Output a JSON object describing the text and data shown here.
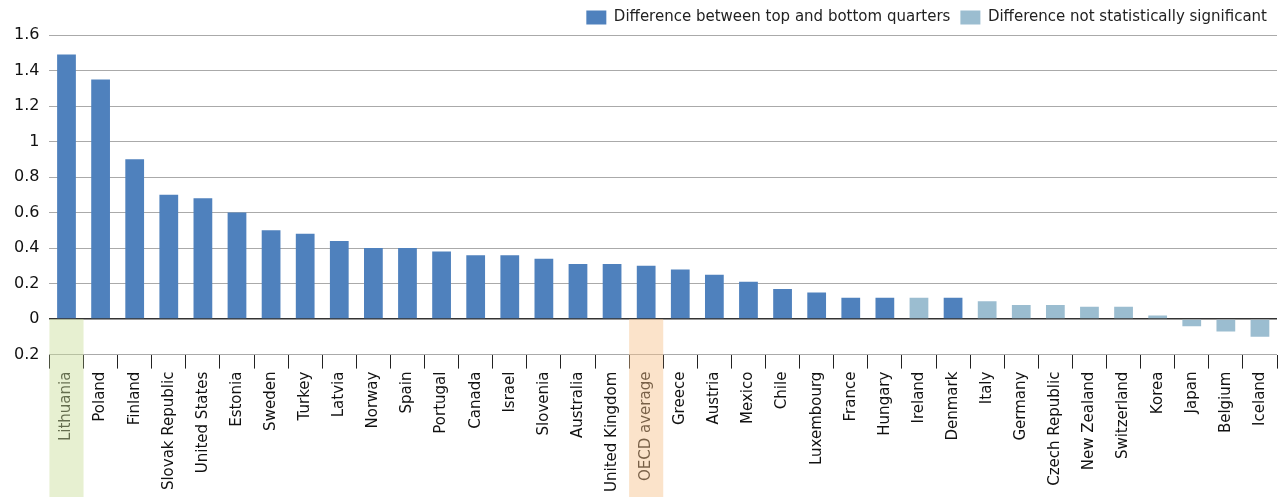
{
  "chart_data": {
    "type": "bar",
    "categories": [
      "Lithuania",
      "Poland",
      "Finland",
      "Slovak Republic",
      "United States",
      "Estonia",
      "Sweden",
      "Turkey",
      "Latvia",
      "Norway",
      "Spain",
      "Portugal",
      "Canada",
      "Israel",
      "Slovenia",
      "Australia",
      "United Kingdom",
      "OECD average",
      "Greece",
      "Austria",
      "Mexico",
      "Chile",
      "Luxembourg",
      "France",
      "Hungary",
      "Ireland",
      "Denmark",
      "Italy",
      "Germany",
      "Czech Republic",
      "New Zealand",
      "Switzerland",
      "Korea",
      "Japan",
      "Belgium",
      "Iceland"
    ],
    "series": [
      {
        "name": "Difference between top and bottom quarters",
        "color": "#4f81bd",
        "values": [
          1.49,
          1.35,
          0.9,
          0.7,
          0.68,
          0.6,
          0.5,
          0.48,
          0.44,
          0.4,
          0.4,
          0.38,
          0.36,
          0.36,
          0.34,
          0.31,
          0.31,
          0.3,
          0.28,
          0.25,
          0.21,
          0.17,
          0.15,
          0.12,
          0.12,
          null,
          0.12,
          null,
          null,
          null,
          null,
          null,
          null,
          null,
          null,
          null
        ]
      },
      {
        "name": "Difference not statistically significant",
        "color": "#9bbdd0",
        "values": [
          null,
          null,
          null,
          null,
          null,
          null,
          null,
          null,
          null,
          null,
          null,
          null,
          null,
          null,
          null,
          null,
          null,
          null,
          null,
          null,
          null,
          null,
          null,
          null,
          null,
          0.12,
          null,
          0.1,
          0.08,
          0.08,
          0.07,
          0.07,
          0.02,
          -0.04,
          -0.07,
          -0.1
        ]
      }
    ],
    "ylim": [
      -0.2,
      1.6
    ],
    "yticks": [
      {
        "value": -0.2,
        "label": "0.2"
      },
      0,
      0.2,
      0.4,
      0.6,
      0.8,
      1,
      1.2,
      1.4,
      1.6
    ],
    "grid": "y",
    "legend": "top right",
    "bands": [
      {
        "axis": "x",
        "from": "Lithuania",
        "to": "Lithuania",
        "color": "#c9dd9a"
      },
      {
        "axis": "x",
        "from": "OECD average",
        "to": "OECD average",
        "color": "#f7c28a"
      }
    ]
  }
}
